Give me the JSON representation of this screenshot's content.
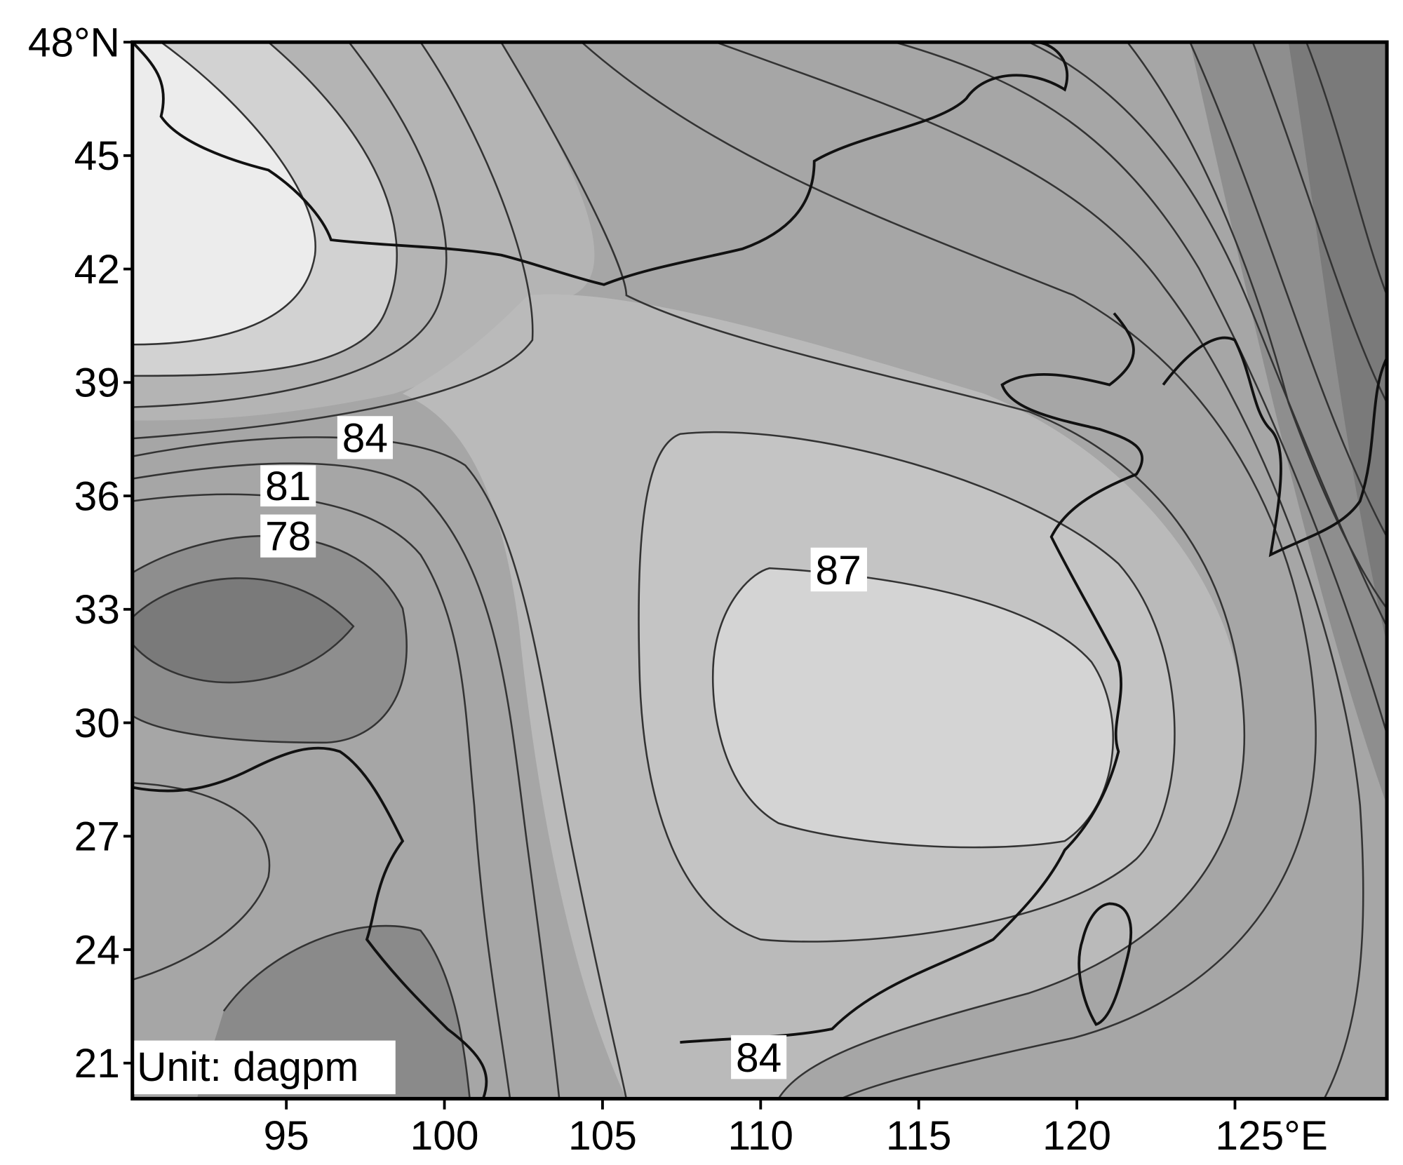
{
  "map": {
    "y_axis": {
      "ticks": [
        "48°N",
        "45",
        "42",
        "39",
        "36",
        "33",
        "30",
        "27",
        "24",
        "21"
      ]
    },
    "x_axis": {
      "ticks": [
        "95",
        "100",
        "105",
        "110",
        "115",
        "120",
        "125°E"
      ]
    },
    "contour_labels": [
      "84",
      "81",
      "78",
      "87",
      "84"
    ],
    "unit": "Unit: dagpm"
  }
}
